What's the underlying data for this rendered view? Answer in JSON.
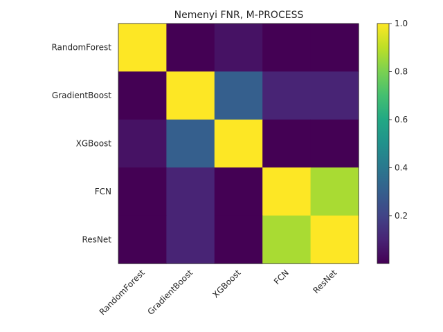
{
  "chart_data": {
    "type": "heatmap",
    "title": "Nemenyi FNR, M-PROCESS",
    "xlabel": "",
    "ylabel": "",
    "rows": [
      "RandomForest",
      "GradientBoost",
      "XGBoost",
      "FCN",
      "ResNet"
    ],
    "cols": [
      "RandomForest",
      "GradientBoost",
      "XGBoost",
      "FCN",
      "ResNet"
    ],
    "values": [
      [
        1.0,
        0.001,
        0.05,
        0.001,
        0.001
      ],
      [
        0.001,
        1.0,
        0.3,
        0.1,
        0.1
      ],
      [
        0.05,
        0.3,
        1.0,
        0.001,
        0.001
      ],
      [
        0.001,
        0.1,
        0.001,
        1.0,
        0.87
      ],
      [
        0.001,
        0.1,
        0.001,
        0.87,
        1.0
      ]
    ],
    "colormap": "viridis",
    "vmin": 0.001,
    "vmax": 1.0,
    "colorbar_ticks": [
      0.2,
      0.4,
      0.6,
      0.8,
      1.0
    ],
    "colorbar_tick_labels": [
      "0.2",
      "0.4",
      "0.6",
      "0.8",
      "1.0"
    ]
  }
}
